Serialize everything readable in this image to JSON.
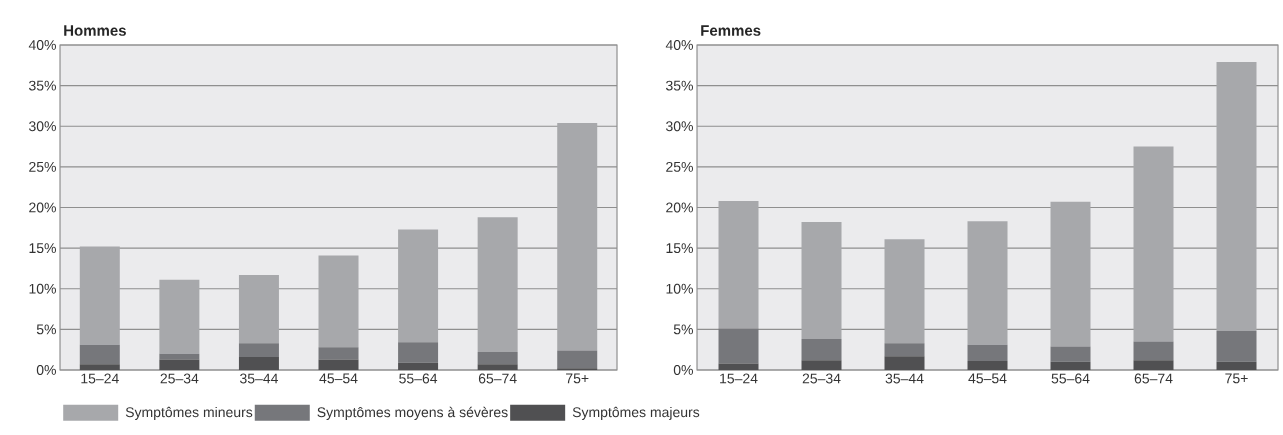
{
  "chart_data": [
    {
      "type": "bar",
      "title": "Hommes",
      "stacked": true,
      "grid": "y",
      "legend": "bottom",
      "categories": [
        "15–24",
        "25–34",
        "35–44",
        "45–54",
        "55–64",
        "65–74",
        "75+"
      ],
      "series": [
        {
          "name": "Symptômes majeurs",
          "color": "#505052",
          "values": [
            0.7,
            1.3,
            1.6,
            1.3,
            0.9,
            0.7,
            0.2
          ]
        },
        {
          "name": "Symptômes moyens à sévères",
          "color": "#76777b",
          "values": [
            2.4,
            0.7,
            1.7,
            1.5,
            2.5,
            1.5,
            2.2
          ]
        },
        {
          "name": "Symptômes mineurs",
          "color": "#a7a8ab",
          "values": [
            12.1,
            9.1,
            8.4,
            11.3,
            13.9,
            16.6,
            28.0
          ]
        }
      ],
      "ylim": [
        0,
        40
      ],
      "yticks": [
        {
          "value": 0,
          "label": "0%"
        },
        {
          "value": 5,
          "label": "5%"
        },
        {
          "value": 10,
          "label": "10%"
        },
        {
          "value": 15,
          "label": "15%"
        },
        {
          "value": 20,
          "label": "20%"
        },
        {
          "value": 25,
          "label": "25%"
        },
        {
          "value": 30,
          "label": "30%"
        },
        {
          "value": 35,
          "label": "35%"
        },
        {
          "value": 40,
          "label": "40%"
        }
      ]
    },
    {
      "type": "bar",
      "title": "Femmes",
      "stacked": true,
      "grid": "y",
      "categories": [
        "15–24",
        "25–34",
        "35–44",
        "45–54",
        "55–64",
        "65–74",
        "75+"
      ],
      "series": [
        {
          "color": "#505052",
          "values": [
            0.8,
            1.2,
            1.7,
            1.1,
            1.0,
            1.2,
            1.0
          ]
        },
        {
          "color": "#76777b",
          "values": [
            4.3,
            2.6,
            1.6,
            2.0,
            1.9,
            2.3,
            3.8
          ]
        },
        {
          "color": "#a7a8ab",
          "values": [
            15.7,
            14.4,
            12.8,
            15.2,
            17.8,
            24.0,
            33.1
          ]
        }
      ],
      "ylim": [
        0,
        40
      ],
      "yticks": [
        {
          "value": 0,
          "label": "0%"
        },
        {
          "value": 5,
          "label": "5%"
        },
        {
          "value": 10,
          "label": "10%"
        },
        {
          "value": 15,
          "label": "15%"
        },
        {
          "value": 20,
          "label": "20%"
        },
        {
          "value": 25,
          "label": "25%"
        },
        {
          "value": 30,
          "label": "30%"
        },
        {
          "value": 35,
          "label": "35%"
        },
        {
          "value": 40,
          "label": "40%"
        }
      ]
    }
  ]
}
